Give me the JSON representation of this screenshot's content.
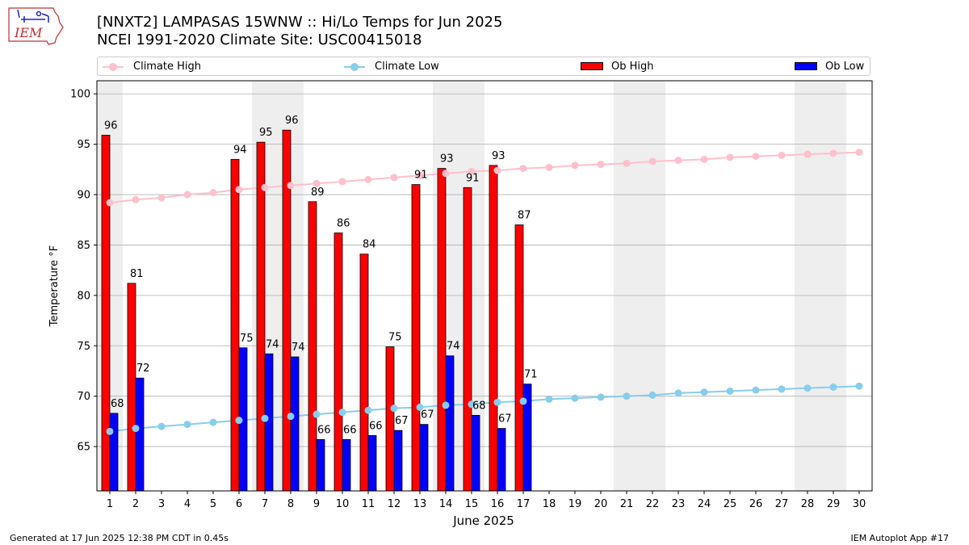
{
  "header": {
    "title_line1": "[NNXT2] LAMPASAS 15WNW :: Hi/Lo Temps for Jun 2025",
    "title_line2": "NCEI 1991-2020 Climate Site: USC00415018",
    "logo_text": "IEM"
  },
  "footer": {
    "left": "Generated at 17 Jun 2025 12:38 PM CDT in 0.45s",
    "right": "IEM Autoplot App #17"
  },
  "colors": {
    "ob_high": "#ff0000",
    "ob_low": "#0000ff",
    "climate_high": "#ffc0cb",
    "climate_low": "#87ceeb",
    "weekend_shade": "#eeeeee",
    "grid": "#b0b0b0"
  },
  "chart_data": {
    "type": "bar",
    "xlabel": "June 2025",
    "ylabel": "Temperature °F",
    "ylim": [
      60.6,
      101.3
    ],
    "yticks": [
      65,
      70,
      75,
      80,
      85,
      90,
      95,
      100
    ],
    "categories": [
      "1",
      "2",
      "3",
      "4",
      "5",
      "6",
      "7",
      "8",
      "9",
      "10",
      "11",
      "12",
      "13",
      "14",
      "15",
      "16",
      "17",
      "18",
      "19",
      "20",
      "21",
      "22",
      "23",
      "24",
      "25",
      "26",
      "27",
      "28",
      "29",
      "30"
    ],
    "shaded_days": [
      1,
      7,
      8,
      14,
      15,
      21,
      22,
      28,
      29
    ],
    "grid": "horizontal",
    "legend_position": "top",
    "series": [
      {
        "name": "Ob High",
        "kind": "bar",
        "values": [
          96,
          81,
          null,
          null,
          null,
          94,
          95,
          96,
          89,
          86,
          84,
          75,
          91,
          93,
          91,
          93,
          87,
          null,
          null,
          null,
          null,
          null,
          null,
          null,
          null,
          null,
          null,
          null,
          null,
          null
        ],
        "bar_heights": [
          95.9,
          81.2,
          null,
          null,
          null,
          93.5,
          95.2,
          96.4,
          89.3,
          86.2,
          84.1,
          74.9,
          91.0,
          92.6,
          90.7,
          92.9,
          87.0,
          null,
          null,
          null,
          null,
          null,
          null,
          null,
          null,
          null,
          null,
          null,
          null,
          null
        ]
      },
      {
        "name": "Ob Low",
        "kind": "bar",
        "values": [
          68,
          72,
          null,
          null,
          null,
          75,
          74,
          74,
          66,
          66,
          66,
          67,
          67,
          74,
          68,
          67,
          71,
          null,
          null,
          null,
          null,
          null,
          null,
          null,
          null,
          null,
          null,
          null,
          null,
          null
        ],
        "bar_heights": [
          68.3,
          71.8,
          null,
          null,
          null,
          74.8,
          74.2,
          73.9,
          65.7,
          65.7,
          66.1,
          66.6,
          67.2,
          74.0,
          68.1,
          66.8,
          71.2,
          null,
          null,
          null,
          null,
          null,
          null,
          null,
          null,
          null,
          null,
          null,
          null,
          null
        ]
      },
      {
        "name": "Climate High",
        "kind": "line",
        "values": [
          89.2,
          89.5,
          89.7,
          90.0,
          90.2,
          90.5,
          90.7,
          90.9,
          91.1,
          91.3,
          91.5,
          91.7,
          91.9,
          92.1,
          92.3,
          92.4,
          92.6,
          92.7,
          92.9,
          93.0,
          93.1,
          93.3,
          93.4,
          93.5,
          93.7,
          93.8,
          93.9,
          94.0,
          94.1,
          94.2
        ]
      },
      {
        "name": "Climate Low",
        "kind": "line",
        "values": [
          66.5,
          66.8,
          67.0,
          67.2,
          67.4,
          67.6,
          67.8,
          68.0,
          68.2,
          68.4,
          68.6,
          68.8,
          68.9,
          69.1,
          69.2,
          69.4,
          69.5,
          69.7,
          69.8,
          69.9,
          70.0,
          70.1,
          70.3,
          70.4,
          70.5,
          70.6,
          70.7,
          70.8,
          70.9,
          71.0
        ]
      }
    ]
  }
}
